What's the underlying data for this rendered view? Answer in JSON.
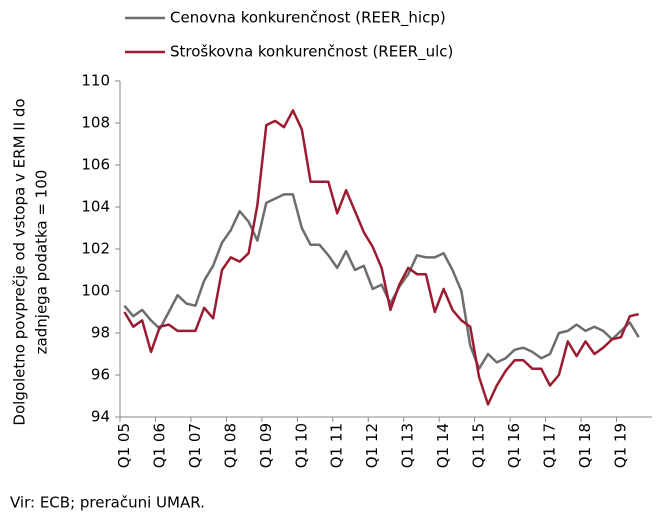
{
  "chart_data": {
    "type": "line",
    "ylabel": [
      "Dolgoletno povprečje od vstopa v ERM II do",
      "zadnjega podatka = 100"
    ],
    "source": "Vir: ECB; preračuni UMAR.",
    "categories": [
      "Q1 05",
      null,
      null,
      null,
      "Q1 06",
      null,
      null,
      null,
      "Q1 07",
      null,
      null,
      null,
      "Q1 08",
      null,
      null,
      null,
      "Q1 09",
      null,
      null,
      null,
      "Q1 10",
      null,
      null,
      null,
      "Q1 11",
      null,
      null,
      null,
      "Q1 12",
      null,
      null,
      null,
      "Q1 13",
      null,
      null,
      null,
      "Q1 14",
      null,
      null,
      null,
      "Q1 15",
      null,
      null,
      null,
      "Q1 16",
      null,
      null,
      null,
      "Q1 17",
      null,
      null,
      null,
      "Q1 18",
      null,
      null,
      null,
      "Q1 19",
      null,
      null,
      null
    ],
    "series": [
      {
        "name": "Cenovna konkurenčnost (REER_hicp)",
        "color": "#6d6d6d",
        "values": [
          99.3,
          98.8,
          99.1,
          98.6,
          98.2,
          99.0,
          99.8,
          99.4,
          99.3,
          100.5,
          101.2,
          102.3,
          102.9,
          103.8,
          103.3,
          102.4,
          104.2,
          104.4,
          104.6,
          104.6,
          103.0,
          102.2,
          102.2,
          101.7,
          101.1,
          101.9,
          101.0,
          101.2,
          100.1,
          100.3,
          99.4,
          100.2,
          100.8,
          101.7,
          101.6,
          101.6,
          101.8,
          101.0,
          100.0,
          97.4,
          96.3,
          97.0,
          96.6,
          96.8,
          97.2,
          97.3,
          97.1,
          96.8,
          97.0,
          98.0,
          98.1,
          98.4,
          98.1,
          98.3,
          98.1,
          97.7,
          98.1,
          98.5,
          97.8,
          null
        ]
      },
      {
        "name": "Stroškovna konkurenčnost (REER_ulc)",
        "color": "#9b1c31",
        "values": [
          99.0,
          98.3,
          98.6,
          97.1,
          98.3,
          98.4,
          98.1,
          98.1,
          98.1,
          99.2,
          98.7,
          101.0,
          101.6,
          101.4,
          101.8,
          104.1,
          107.9,
          108.1,
          107.8,
          108.6,
          107.7,
          105.2,
          105.2,
          105.2,
          103.7,
          104.8,
          103.8,
          102.8,
          102.1,
          101.1,
          99.1,
          100.3,
          101.1,
          100.8,
          100.8,
          99.0,
          100.1,
          99.1,
          98.6,
          98.3,
          95.9,
          94.6,
          95.5,
          96.2,
          96.7,
          96.7,
          96.3,
          96.3,
          95.5,
          96.0,
          97.6,
          96.9,
          97.6,
          97.0,
          97.3,
          97.7,
          97.8,
          98.8,
          98.9,
          null
        ]
      }
    ],
    "ylim": [
      94,
      110
    ],
    "yticks": [
      94,
      96,
      98,
      100,
      102,
      104,
      106,
      108,
      110
    ]
  }
}
